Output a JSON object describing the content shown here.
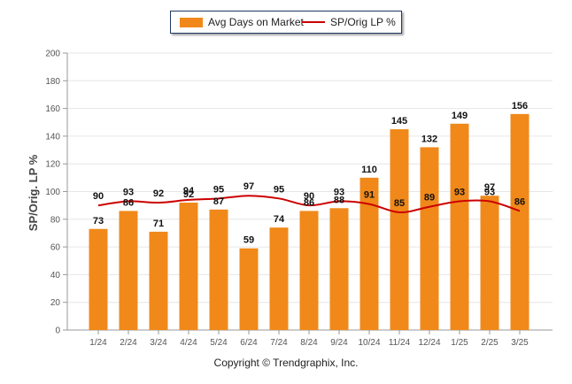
{
  "chart_data": {
    "type": "bar",
    "categories": [
      "1/24",
      "2/24",
      "3/24",
      "4/24",
      "5/24",
      "6/24",
      "7/24",
      "8/24",
      "9/24",
      "10/24",
      "11/24",
      "12/24",
      "1/25",
      "2/25",
      "3/25"
    ],
    "series": [
      {
        "name": "Avg Days on Market",
        "type": "bar",
        "color": "#f0891a",
        "values": [
          73,
          86,
          71,
          92,
          87,
          59,
          74,
          86,
          88,
          110,
          145,
          132,
          149,
          97,
          156
        ]
      },
      {
        "name": "SP/Orig LP %",
        "type": "line",
        "color": "#cc0000",
        "values": [
          90,
          93,
          92,
          94,
          95,
          97,
          95,
          90,
          93,
          91,
          85,
          89,
          93,
          93,
          86
        ]
      }
    ],
    "ylabel": "SP/Orig. LP %",
    "ylim": [
      0,
      200
    ],
    "yticks": [
      0,
      20,
      40,
      60,
      80,
      100,
      120,
      140,
      160,
      180,
      200
    ],
    "grid": true,
    "legend_position": "top-center"
  },
  "legend": {
    "bar_label": "Avg Days on Market",
    "line_label": "SP/Orig LP %"
  },
  "footer": {
    "copyright": "Copyright © Trendgraphix, Inc."
  }
}
